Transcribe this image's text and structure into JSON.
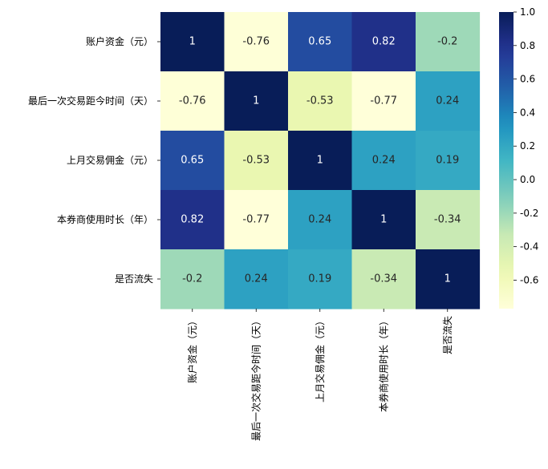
{
  "chart_data": {
    "type": "heatmap",
    "row_labels": [
      "账户资金（元）",
      "最后一次交易距今时间（天）",
      "上月交易佣金（元）",
      "本券商使用时长（年）",
      "是否流失"
    ],
    "col_labels": [
      "账户资金（元）",
      "最后一次交易距今时间（天）",
      "上月交易佣金（元）",
      "本券商使用时长（年）",
      "是否流失"
    ],
    "values": [
      [
        1,
        -0.76,
        0.65,
        0.82,
        -0.2
      ],
      [
        -0.76,
        1,
        -0.53,
        -0.77,
        0.24
      ],
      [
        0.65,
        -0.53,
        1,
        0.24,
        0.19
      ],
      [
        0.82,
        -0.77,
        0.24,
        1,
        -0.34
      ],
      [
        -0.2,
        0.24,
        0.19,
        -0.34,
        1
      ]
    ],
    "annotations": [
      [
        "1",
        "-0.76",
        "0.65",
        "0.82",
        "-0.2"
      ],
      [
        "-0.76",
        "1",
        "-0.53",
        "-0.77",
        "0.24"
      ],
      [
        "0.65",
        "-0.53",
        "1",
        "0.24",
        "0.19"
      ],
      [
        "0.82",
        "-0.77",
        "0.24",
        "1",
        "-0.34"
      ],
      [
        "-0.2",
        "0.24",
        "0.19",
        "-0.34",
        "1"
      ]
    ],
    "colormap": "YlGnBu",
    "vmin": -0.77,
    "vmax": 1.0,
    "colorbar_ticks": [
      1.0,
      0.8,
      0.6,
      0.4,
      0.2,
      0.0,
      -0.2,
      -0.4,
      -0.6
    ],
    "colorbar_tick_labels": [
      "1.0",
      "0.8",
      "0.6",
      "0.4",
      "0.2",
      "0.0",
      "-0.2",
      "-0.4",
      "-0.6"
    ],
    "colorbar_position": "right"
  }
}
